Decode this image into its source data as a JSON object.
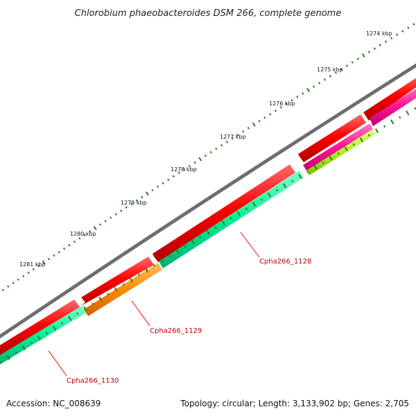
{
  "title": "Chlorobium phaeobacteroides DSM 266, complete genome",
  "footer": {
    "accession": "Accession: NC_008639",
    "topology": "Topology: circular; Length: 3,133,902 bp; Genes: 2,705"
  },
  "scale": {
    "unit": "kbp",
    "ticks": [
      {
        "kbp": 1274,
        "label": "1274 kbp"
      },
      {
        "kbp": 1275,
        "label": "1275 kbp"
      },
      {
        "kbp": 1276,
        "label": "1276 kbp"
      },
      {
        "kbp": 1277,
        "label": "1277 kbp"
      },
      {
        "kbp": 1278,
        "label": "1278 kbp"
      },
      {
        "kbp": 1279,
        "label": "1279 kbp"
      },
      {
        "kbp": 1280,
        "label": "1280 kbp"
      },
      {
        "kbp": 1281,
        "label": "1281 kbp"
      }
    ]
  },
  "gene_labels": [
    {
      "id": "Cpha266_1128",
      "text": "Cpha266_1128"
    },
    {
      "id": "Cpha266_1129",
      "text": "Cpha266_1129"
    },
    {
      "id": "Cpha266_1130",
      "text": "Cpha266_1130"
    }
  ],
  "colors": {
    "backbone": "#808080",
    "cds": "#ff0000",
    "cog_green": "#00e890",
    "cog_orange": "#ff8c00",
    "cog_magenta": "#ff1493",
    "cog_lime": "#b0f020",
    "tick": "#2e7d1e",
    "label": "#c00000"
  }
}
